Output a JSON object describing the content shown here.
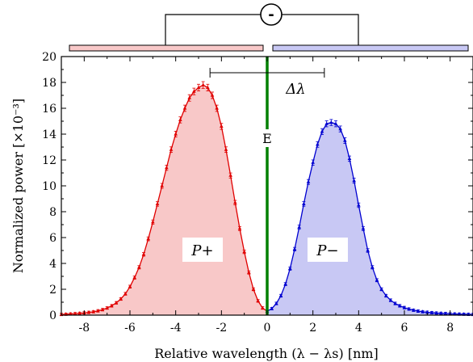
{
  "chart_data": {
    "type": "area",
    "xlabel": "Relative wavelength (λ − λs) [nm]",
    "ylabel": "Normalized power [×10⁻³]",
    "xlim": [
      -9,
      9
    ],
    "ylim": [
      0,
      20
    ],
    "xticks": [
      -8,
      -6,
      -4,
      -2,
      0,
      2,
      4,
      6,
      8
    ],
    "yticks": [
      0,
      2,
      4,
      6,
      8,
      10,
      12,
      14,
      16,
      18,
      20
    ],
    "grid": false,
    "colors": {
      "p_plus_line": "#e00000",
      "p_plus_fill": "#f8c8c8",
      "p_minus_line": "#0000d0",
      "p_minus_fill": "#c8c8f4",
      "divider": "#008000"
    },
    "series": [
      {
        "label": "P+",
        "x": [
          -9.0,
          -8.8,
          -8.6,
          -8.4,
          -8.2,
          -8.0,
          -7.8,
          -7.6,
          -7.4,
          -7.2,
          -7.0,
          -6.8,
          -6.6,
          -6.4,
          -6.2,
          -6.0,
          -5.8,
          -5.6,
          -5.4,
          -5.2,
          -5.0,
          -4.8,
          -4.6,
          -4.4,
          -4.2,
          -4.0,
          -3.8,
          -3.6,
          -3.4,
          -3.2,
          -3.0,
          -2.8,
          -2.6,
          -2.4,
          -2.2,
          -2.0,
          -1.8,
          -1.6,
          -1.4,
          -1.2,
          -1.0,
          -0.8,
          -0.6,
          -0.4,
          -0.2,
          0.0
        ],
        "y": [
          0.05,
          0.07,
          0.09,
          0.11,
          0.14,
          0.17,
          0.21,
          0.26,
          0.33,
          0.42,
          0.55,
          0.72,
          0.95,
          1.25,
          1.65,
          2.2,
          2.9,
          3.7,
          4.7,
          5.9,
          7.2,
          8.6,
          10.0,
          11.4,
          12.8,
          14.0,
          15.1,
          16.0,
          16.8,
          17.3,
          17.6,
          17.8,
          17.6,
          17.0,
          16.0,
          14.6,
          12.8,
          10.8,
          8.7,
          6.7,
          4.9,
          3.3,
          2.0,
          1.1,
          0.55,
          0.3
        ]
      },
      {
        "label": "P−",
        "x": [
          0.0,
          0.2,
          0.4,
          0.6,
          0.8,
          1.0,
          1.2,
          1.4,
          1.6,
          1.8,
          2.0,
          2.2,
          2.4,
          2.6,
          2.8,
          3.0,
          3.2,
          3.4,
          3.6,
          3.8,
          4.0,
          4.2,
          4.4,
          4.6,
          4.8,
          5.0,
          5.2,
          5.4,
          5.6,
          5.8,
          6.0,
          6.2,
          6.4,
          6.6,
          6.8,
          7.0,
          7.2,
          7.4,
          7.6,
          7.8,
          8.0,
          8.2,
          8.4,
          8.6,
          8.8,
          9.0
        ],
        "y": [
          0.3,
          0.5,
          0.9,
          1.5,
          2.4,
          3.6,
          5.1,
          6.8,
          8.6,
          10.3,
          11.8,
          13.2,
          14.2,
          14.8,
          14.9,
          14.8,
          14.4,
          13.5,
          12.1,
          10.4,
          8.5,
          6.7,
          5.0,
          3.7,
          2.7,
          2.0,
          1.5,
          1.15,
          0.9,
          0.72,
          0.58,
          0.47,
          0.38,
          0.31,
          0.26,
          0.22,
          0.19,
          0.16,
          0.14,
          0.12,
          0.1,
          0.09,
          0.08,
          0.07,
          0.06,
          0.05
        ]
      }
    ],
    "annotations": {
      "delta_lambda": "Δλ",
      "delta_from_x": -2.5,
      "delta_to_x": 2.5,
      "divider_label": "E",
      "divider_x": 0,
      "p_plus_label": "P+",
      "p_minus_label": "P−",
      "minus_symbol": "-"
    }
  }
}
